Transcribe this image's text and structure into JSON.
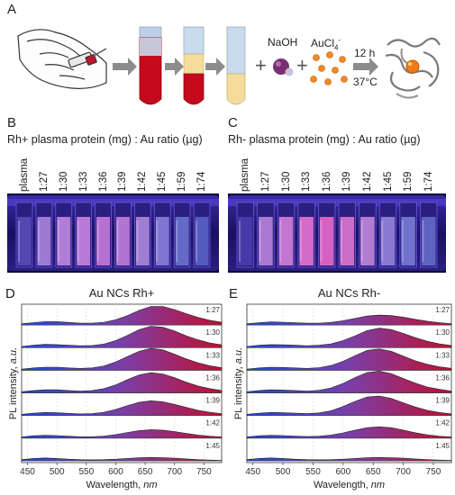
{
  "panel_a": {
    "letter": "A",
    "reagent_1": "NaOH",
    "reagent_2_base": "AuCl",
    "reagent_2_sub": "4",
    "reagent_2_sup": "-",
    "plus": "+",
    "condition_time": "12 h",
    "condition_temp": "37°C"
  },
  "panel_b": {
    "letter": "B",
    "caption": "Rh+ plasma protein (mg) : Au ratio (µg)",
    "tube_labels": [
      "plasma",
      "1:27",
      "1:30",
      "1:33",
      "1:36",
      "1:39",
      "1:42",
      "1:45",
      "1:59",
      "1:74"
    ],
    "tube_colors": [
      "#5a4fb8",
      "#b08ae0",
      "#c98ee6",
      "#d08be6",
      "#cf7fe0",
      "#c984de",
      "#b58fe3",
      "#8e86de",
      "#6d78d2",
      "#5b67c9"
    ]
  },
  "panel_c": {
    "letter": "C",
    "caption": "Rh- plasma protein (mg) : Au ratio (µg)",
    "tube_labels": [
      "plasma",
      "1:27",
      "1:30",
      "1:33",
      "1:36",
      "1:39",
      "1:42",
      "1:45",
      "1:59",
      "1:74"
    ],
    "tube_colors": [
      "#4a3fb0",
      "#c08ae0",
      "#dd86de",
      "#f07ad8",
      "#f26fcf",
      "#e87ad4",
      "#c88ee2",
      "#9b8ae0",
      "#7c80d8",
      "#6670cc"
    ]
  },
  "chart_data": [
    {
      "type": "area",
      "panel": "D",
      "title": "Au NCs Rh+",
      "xlabel": "Wavelength, nm",
      "ylabel": "PL intensity, a.u.",
      "xlim": [
        440,
        780
      ],
      "xticks": [
        450,
        500,
        550,
        600,
        650,
        700,
        750
      ],
      "grid": true,
      "gradient_colors": [
        "#1f48e0",
        "#7a3fa8",
        "#c01030"
      ],
      "series": [
        {
          "name": "1:27",
          "x": [
            440,
            460,
            480,
            500,
            520,
            540,
            560,
            580,
            600,
            620,
            640,
            660,
            680,
            700,
            720,
            740,
            760,
            780
          ],
          "y": [
            0.05,
            0.1,
            0.14,
            0.14,
            0.11,
            0.08,
            0.08,
            0.12,
            0.22,
            0.4,
            0.62,
            0.78,
            0.78,
            0.65,
            0.48,
            0.32,
            0.2,
            0.12
          ]
        },
        {
          "name": "1:30",
          "x": [
            440,
            460,
            480,
            500,
            520,
            540,
            560,
            580,
            600,
            620,
            640,
            660,
            680,
            700,
            720,
            740,
            760,
            780
          ],
          "y": [
            0.05,
            0.1,
            0.14,
            0.13,
            0.1,
            0.08,
            0.09,
            0.15,
            0.3,
            0.52,
            0.76,
            0.9,
            0.86,
            0.7,
            0.5,
            0.33,
            0.2,
            0.12
          ]
        },
        {
          "name": "1:33",
          "x": [
            440,
            460,
            480,
            500,
            520,
            540,
            560,
            580,
            600,
            620,
            640,
            660,
            680,
            700,
            720,
            740,
            760,
            780
          ],
          "y": [
            0.05,
            0.1,
            0.13,
            0.13,
            0.1,
            0.08,
            0.1,
            0.18,
            0.35,
            0.58,
            0.8,
            0.92,
            0.86,
            0.68,
            0.48,
            0.31,
            0.19,
            0.11
          ]
        },
        {
          "name": "1:36",
          "x": [
            440,
            460,
            480,
            500,
            520,
            540,
            560,
            580,
            600,
            620,
            640,
            660,
            680,
            700,
            720,
            740,
            760,
            780
          ],
          "y": [
            0.05,
            0.1,
            0.13,
            0.13,
            0.1,
            0.08,
            0.1,
            0.18,
            0.34,
            0.56,
            0.76,
            0.85,
            0.8,
            0.64,
            0.45,
            0.29,
            0.18,
            0.1
          ]
        },
        {
          "name": "1:39",
          "x": [
            440,
            460,
            480,
            500,
            520,
            540,
            560,
            580,
            600,
            620,
            640,
            660,
            680,
            700,
            720,
            740,
            760,
            780
          ],
          "y": [
            0.05,
            0.1,
            0.13,
            0.12,
            0.09,
            0.07,
            0.08,
            0.14,
            0.26,
            0.42,
            0.56,
            0.62,
            0.58,
            0.47,
            0.34,
            0.22,
            0.14,
            0.08
          ]
        },
        {
          "name": "1:42",
          "x": [
            440,
            460,
            480,
            500,
            520,
            540,
            560,
            580,
            600,
            620,
            640,
            660,
            680,
            700,
            720,
            740,
            760,
            780
          ],
          "y": [
            0.05,
            0.1,
            0.12,
            0.11,
            0.08,
            0.06,
            0.06,
            0.09,
            0.15,
            0.24,
            0.32,
            0.36,
            0.34,
            0.28,
            0.2,
            0.13,
            0.08,
            0.05
          ]
        },
        {
          "name": "1:45",
          "x": [
            440,
            460,
            480,
            500,
            520,
            540,
            560,
            580,
            600,
            620,
            640,
            660,
            680,
            700,
            720,
            740,
            760,
            780
          ],
          "y": [
            0.05,
            0.1,
            0.12,
            0.1,
            0.07,
            0.05,
            0.04,
            0.05,
            0.07,
            0.1,
            0.13,
            0.14,
            0.13,
            0.11,
            0.08,
            0.05,
            0.03,
            0.02
          ]
        }
      ]
    },
    {
      "type": "area",
      "panel": "E",
      "title": "Au NCs Rh-",
      "xlabel": "Wavelength, nm",
      "ylabel": "PL intensity, a.u.",
      "xlim": [
        440,
        780
      ],
      "xticks": [
        450,
        500,
        550,
        600,
        650,
        700,
        750
      ],
      "grid": true,
      "gradient_colors": [
        "#1f48e0",
        "#7a3fa8",
        "#c01030"
      ],
      "series": [
        {
          "name": "1:27",
          "x": [
            440,
            460,
            480,
            500,
            520,
            540,
            560,
            580,
            600,
            620,
            640,
            660,
            680,
            700,
            720,
            740,
            760,
            780
          ],
          "y": [
            0.05,
            0.1,
            0.13,
            0.12,
            0.1,
            0.08,
            0.08,
            0.11,
            0.18,
            0.28,
            0.38,
            0.42,
            0.4,
            0.33,
            0.24,
            0.16,
            0.1,
            0.06
          ]
        },
        {
          "name": "1:30",
          "x": [
            440,
            460,
            480,
            500,
            520,
            540,
            560,
            580,
            600,
            620,
            640,
            660,
            680,
            700,
            720,
            740,
            760,
            780
          ],
          "y": [
            0.05,
            0.1,
            0.13,
            0.12,
            0.1,
            0.08,
            0.1,
            0.16,
            0.3,
            0.5,
            0.72,
            0.82,
            0.76,
            0.6,
            0.42,
            0.27,
            0.16,
            0.09
          ]
        },
        {
          "name": "1:33",
          "x": [
            440,
            460,
            480,
            500,
            520,
            540,
            560,
            580,
            600,
            620,
            640,
            660,
            680,
            700,
            720,
            740,
            760,
            780
          ],
          "y": [
            0.05,
            0.1,
            0.13,
            0.12,
            0.1,
            0.08,
            0.11,
            0.2,
            0.38,
            0.62,
            0.84,
            0.9,
            0.8,
            0.6,
            0.4,
            0.25,
            0.15,
            0.08
          ]
        },
        {
          "name": "1:36",
          "x": [
            440,
            460,
            480,
            500,
            520,
            540,
            560,
            580,
            600,
            620,
            640,
            660,
            680,
            700,
            720,
            740,
            760,
            780
          ],
          "y": [
            0.05,
            0.1,
            0.13,
            0.12,
            0.1,
            0.08,
            0.11,
            0.21,
            0.4,
            0.65,
            0.86,
            0.92,
            0.81,
            0.61,
            0.41,
            0.25,
            0.15,
            0.08
          ]
        },
        {
          "name": "1:39",
          "x": [
            440,
            460,
            480,
            500,
            520,
            540,
            560,
            580,
            600,
            620,
            640,
            660,
            680,
            700,
            720,
            740,
            760,
            780
          ],
          "y": [
            0.05,
            0.1,
            0.13,
            0.12,
            0.1,
            0.08,
            0.11,
            0.2,
            0.38,
            0.6,
            0.78,
            0.82,
            0.72,
            0.54,
            0.36,
            0.22,
            0.13,
            0.07
          ]
        },
        {
          "name": "1:42",
          "x": [
            440,
            460,
            480,
            500,
            520,
            540,
            560,
            580,
            600,
            620,
            640,
            660,
            680,
            700,
            720,
            740,
            760,
            780
          ],
          "y": [
            0.05,
            0.1,
            0.12,
            0.11,
            0.09,
            0.07,
            0.08,
            0.13,
            0.22,
            0.34,
            0.44,
            0.48,
            0.44,
            0.34,
            0.23,
            0.14,
            0.08,
            0.05
          ]
        },
        {
          "name": "1:45",
          "x": [
            440,
            460,
            480,
            500,
            520,
            540,
            560,
            580,
            600,
            620,
            640,
            660,
            680,
            700,
            720,
            740,
            760,
            780
          ],
          "y": [
            0.05,
            0.1,
            0.12,
            0.1,
            0.07,
            0.05,
            0.04,
            0.05,
            0.07,
            0.1,
            0.13,
            0.14,
            0.13,
            0.11,
            0.08,
            0.05,
            0.03,
            0.02
          ]
        }
      ]
    }
  ]
}
